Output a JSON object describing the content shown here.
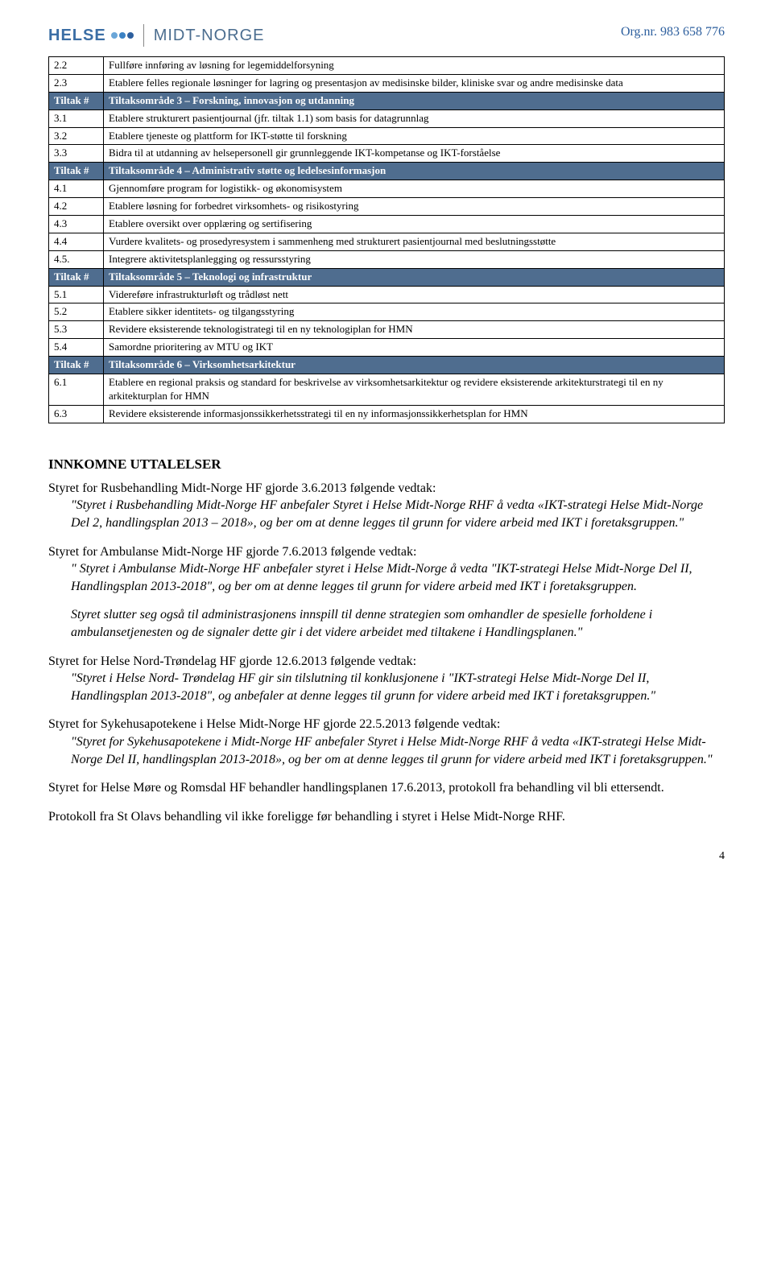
{
  "org_label": "Org.nr. 983 658 776",
  "logo": {
    "helse": "HELSE",
    "midt": "MIDT-NORGE"
  },
  "table": {
    "rows": [
      {
        "type": "data",
        "c1": "2.2",
        "c2": "Fullføre innføring av løsning for legemiddelforsyning"
      },
      {
        "type": "data",
        "c1": "2.3",
        "c2": "Etablere felles regionale løsninger for lagring og presentasjon av medisinske bilder, kliniske svar og andre medisinske data"
      },
      {
        "type": "header",
        "c1": "Tiltak #",
        "c2": "Tiltaksområde 3 – Forskning, innovasjon og utdanning"
      },
      {
        "type": "data",
        "c1": "3.1",
        "c2": "Etablere strukturert pasientjournal (jfr. tiltak 1.1) som basis for datagrunnlag"
      },
      {
        "type": "data",
        "c1": "3.2",
        "c2": "Etablere tjeneste og plattform for IKT-støtte til forskning"
      },
      {
        "type": "data",
        "c1": "3.3",
        "c2": "Bidra til at utdanning av helsepersonell gir grunnleggende IKT-kompetanse og IKT-forståelse"
      },
      {
        "type": "header",
        "c1": "Tiltak #",
        "c2": "Tiltaksområde 4 – Administrativ støtte og ledelsesinformasjon"
      },
      {
        "type": "data",
        "c1": "4.1",
        "c2": "Gjennomføre program for logistikk- og økonomisystem"
      },
      {
        "type": "data",
        "c1": "4.2",
        "c2": "Etablere løsning for forbedret virksomhets- og risikostyring"
      },
      {
        "type": "data",
        "c1": "4.3",
        "c2": "Etablere oversikt over opplæring og sertifisering"
      },
      {
        "type": "data",
        "c1": "4.4",
        "c2": "Vurdere kvalitets- og prosedyresystem i sammenheng med strukturert pasientjournal med beslutningsstøtte"
      },
      {
        "type": "data",
        "c1": "4.5.",
        "c2": "Integrere aktivitetsplanlegging og ressursstyring"
      },
      {
        "type": "header",
        "c1": "Tiltak #",
        "c2": "Tiltaksområde 5 – Teknologi og infrastruktur"
      },
      {
        "type": "data",
        "c1": "5.1",
        "c2": "Videreføre infrastrukturløft og trådløst nett"
      },
      {
        "type": "data",
        "c1": "5.2",
        "c2": "Etablere sikker identitets- og tilgangsstyring"
      },
      {
        "type": "data",
        "c1": "5.3",
        "c2": "Revidere eksisterende teknologistrategi til en ny teknologiplan for HMN"
      },
      {
        "type": "data",
        "c1": "5.4",
        "c2": "Samordne prioritering av MTU og IKT"
      },
      {
        "type": "header",
        "c1": "Tiltak #",
        "c2": "Tiltaksområde 6 – Virksomhetsarkitektur"
      },
      {
        "type": "data",
        "c1": "6.1",
        "c2": "Etablere en regional praksis og standard for beskrivelse av virksomhetsarkitektur og revidere eksisterende arkitekturstrategi til en ny arkitekturplan for HMN"
      },
      {
        "type": "data",
        "c1": "6.3",
        "c2": "Revidere eksisterende informasjonssikkerhetsstrategi til en ny informasjonssikkerhetsplan for HMN"
      }
    ]
  },
  "section_title": "INNKOMNE UTTALELSER",
  "p1_lead": "Styret for Rusbehandling Midt-Norge HF gjorde 3.6.2013 følgende vedtak:",
  "p1_quote": "\"Styret i Rusbehandling Midt-Norge HF anbefaler Styret i Helse Midt-Norge RHF å vedta «IKT-strategi Helse Midt-Norge Del 2, handlingsplan 2013 – 2018», og ber om at denne legges til grunn for videre arbeid med IKT i foretaksgruppen.\"",
  "p2_lead": "Styret for Ambulanse Midt-Norge HF gjorde 7.6.2013 følgende vedtak:",
  "p2_quote": "\" Styret i Ambulanse Midt-Norge HF anbefaler styret i Helse Midt-Norge å vedta \"IKT-strategi Helse Midt-Norge Del II, Handlingsplan 2013-2018\", og ber om at denne legges til grunn for videre arbeid med IKT i foretaksgruppen.",
  "p2_quote2": "Styret slutter seg også til administrasjonens innspill til denne strategien som omhandler de spesielle forholdene i ambulansetjenesten og de signaler dette gir i det videre arbeidet med tiltakene i Handlingsplanen.\"",
  "p3_lead": "Styret for Helse Nord-Trøndelag HF gjorde 12.6.2013 følgende vedtak:",
  "p3_quote": "\"Styret i Helse Nord- Trøndelag HF gir sin tilslutning til konklusjonene i \"IKT-strategi Helse Midt-Norge Del II, Handlingsplan 2013-2018\", og anbefaler at denne legges til grunn for videre arbeid med IKT i foretaksgruppen.\"",
  "p4_lead": "Styret for Sykehusapotekene i Helse Midt-Norge HF gjorde 22.5.2013 følgende vedtak:",
  "p4_quote": "\"Styret for Sykehusapotekene i Midt-Norge HF anbefaler Styret i Helse Midt-Norge RHF å vedta «IKT-strategi Helse Midt-Norge Del II, handlingsplan 2013-2018», og ber om at denne legges til grunn for videre arbeid med IKT i foretaksgruppen.\"",
  "p5": "Styret for Helse Møre og Romsdal HF behandler handlingsplanen 17.6.2013, protokoll fra behandling vil bli ettersendt.",
  "p6": "Protokoll fra St Olavs behandling vil ikke foreligge før behandling i styret i Helse Midt-Norge RHF.",
  "page_num": "4"
}
